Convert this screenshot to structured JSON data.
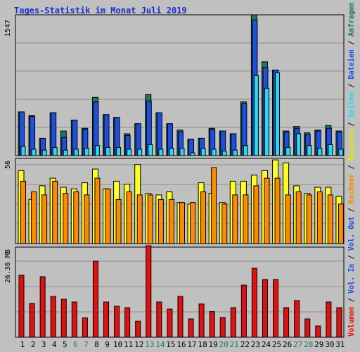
{
  "title": "Tages-Statistik im Monat Juli 2019",
  "colors": {
    "background": "#c0c0c0",
    "anfragen": "#1e7a52",
    "dateien": "#1f4fe0",
    "seiten": "#26d8f2",
    "besuche": "#ffff22",
    "rechner": "#ff8a00",
    "volumen": "#e41010",
    "weekend_label": "#1e7a52",
    "title": "#1a2cc7"
  },
  "chart_data": [
    {
      "type": "bar",
      "panel": "top",
      "ytick_label": "1547",
      "ylim": [
        0,
        1547
      ],
      "categories": [
        "1",
        "2",
        "3",
        "4",
        "5",
        "6",
        "7",
        "8",
        "9",
        "10",
        "11",
        "12",
        "13",
        "14",
        "15",
        "16",
        "17",
        "18",
        "19",
        "20",
        "21",
        "22",
        "23",
        "24",
        "25",
        "26",
        "27",
        "28",
        "29",
        "30",
        "31"
      ],
      "weekend_days": [
        "6",
        "7",
        "13",
        "14",
        "20",
        "21",
        "27",
        "28"
      ],
      "series": [
        {
          "name": "Anfragen",
          "values": [
            480,
            440,
            190,
            470,
            270,
            390,
            300,
            640,
            450,
            420,
            240,
            350,
            670,
            470,
            350,
            280,
            180,
            190,
            300,
            270,
            240,
            590,
            1547,
            1030,
            940,
            270,
            320,
            250,
            280,
            330,
            270
          ]
        },
        {
          "name": "Dateien",
          "values": [
            480,
            430,
            190,
            470,
            200,
            390,
            290,
            590,
            450,
            420,
            220,
            350,
            600,
            470,
            350,
            260,
            180,
            190,
            290,
            270,
            240,
            570,
            1490,
            970,
            940,
            260,
            300,
            230,
            270,
            300,
            260
          ]
        },
        {
          "name": "Seiten",
          "values": [
            100,
            70,
            60,
            90,
            60,
            70,
            80,
            110,
            90,
            90,
            70,
            70,
            120,
            70,
            80,
            80,
            30,
            80,
            70,
            50,
            60,
            110,
            880,
            740,
            910,
            90,
            240,
            110,
            80,
            120,
            70
          ]
        }
      ],
      "legend": [
        "Anfragen",
        "Dateien",
        "Seiten"
      ]
    },
    {
      "type": "bar",
      "panel": "middle",
      "ytick_label": "56",
      "ylim": [
        0,
        56
      ],
      "series": [
        {
          "name": "Besuche",
          "values": [
            48,
            29,
            38,
            43,
            37,
            36,
            40,
            49,
            36,
            41,
            39,
            52,
            33,
            32,
            34,
            27,
            26,
            40,
            33,
            27,
            41,
            41,
            45,
            48,
            55,
            53,
            38,
            33,
            37,
            37,
            31
          ]
        },
        {
          "name": "Rechner",
          "values": [
            41,
            34,
            32,
            41,
            33,
            34,
            32,
            43,
            36,
            29,
            34,
            32,
            32,
            29,
            29,
            27,
            27,
            34,
            50,
            26,
            32,
            32,
            38,
            43,
            43,
            32,
            34,
            32,
            34,
            32,
            26
          ]
        }
      ],
      "legend": [
        "Besuche",
        "Rechner"
      ]
    },
    {
      "type": "bar",
      "panel": "bottom",
      "ytick_label": "26.36 MB",
      "ylim": [
        0,
        32
      ],
      "series": [
        {
          "name": "Volumen",
          "values": [
            22,
            12,
            21.5,
            14.5,
            13.5,
            12.5,
            6.9,
            27,
            12.5,
            11,
            10.5,
            5.7,
            32.5,
            12.5,
            10,
            14.5,
            6.5,
            11.8,
            9.1,
            7,
            10.5,
            18.5,
            24.5,
            20.5,
            20.5,
            10.5,
            13,
            6.5,
            4,
            12.5,
            10.5
          ]
        }
      ],
      "legend": [
        "Volumen",
        "Vol. In",
        "Vol. Out"
      ]
    }
  ],
  "right_labels": [
    {
      "text": "Anfragen",
      "color": "#1e7a52"
    },
    {
      "text": "Dateien",
      "color": "#1f4fe0"
    },
    {
      "text": "Seiten",
      "color": "#26d8f2"
    },
    {
      "text": "Besuche",
      "color": "#e6e600"
    },
    {
      "text": "Rechner",
      "color": "#ff8a00"
    },
    {
      "text": "Vol. Out",
      "color": "#1f4fe0"
    },
    {
      "text": "Vol. In",
      "color": "#1f4fe0"
    },
    {
      "text": "Volumen",
      "color": "#e41010"
    }
  ]
}
